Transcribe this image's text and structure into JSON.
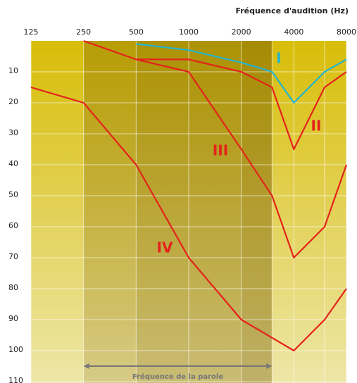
{
  "chart_data": {
    "type": "line",
    "title": "Fréquence d'audition (Hz)",
    "xscale": "log2",
    "xlim": [
      125,
      8000
    ],
    "xticks": [
      125,
      250,
      500,
      1000,
      2000,
      4000,
      8000
    ],
    "minor_xticks": [
      3000,
      6000
    ],
    "ylim": [
      0,
      110
    ],
    "yticks": [
      10,
      20,
      30,
      40,
      50,
      60,
      70,
      80,
      90,
      100,
      110
    ],
    "y_inverted": true,
    "grid": true,
    "speech_range": {
      "label": "Fréquence de la parole",
      "from": 250,
      "to": 3000
    },
    "series": [
      {
        "name": "I",
        "color": "#25b4cc",
        "x": [
          500,
          1000,
          2000,
          3000,
          4000,
          6000,
          8000
        ],
        "values": [
          1,
          3,
          7,
          10,
          20,
          10,
          6
        ]
      },
      {
        "name": "II",
        "color": "#e3231b",
        "x": [
          500,
          1000,
          2000,
          3000,
          4000,
          6000,
          8000
        ],
        "values": [
          6,
          6,
          10,
          15,
          35,
          15,
          10
        ]
      },
      {
        "name": "III",
        "color": "#e3231b",
        "x": [
          250,
          500,
          1000,
          2000,
          3000,
          4000,
          6000,
          8000
        ],
        "values": [
          0,
          6,
          10,
          35,
          50,
          70,
          60,
          40
        ]
      },
      {
        "name": "IV",
        "color": "#e3231b",
        "x": [
          125,
          250,
          500,
          1000,
          2000,
          4000,
          6000,
          8000
        ],
        "values": [
          15,
          20,
          40,
          70,
          90,
          100,
          90,
          80
        ]
      }
    ]
  }
}
